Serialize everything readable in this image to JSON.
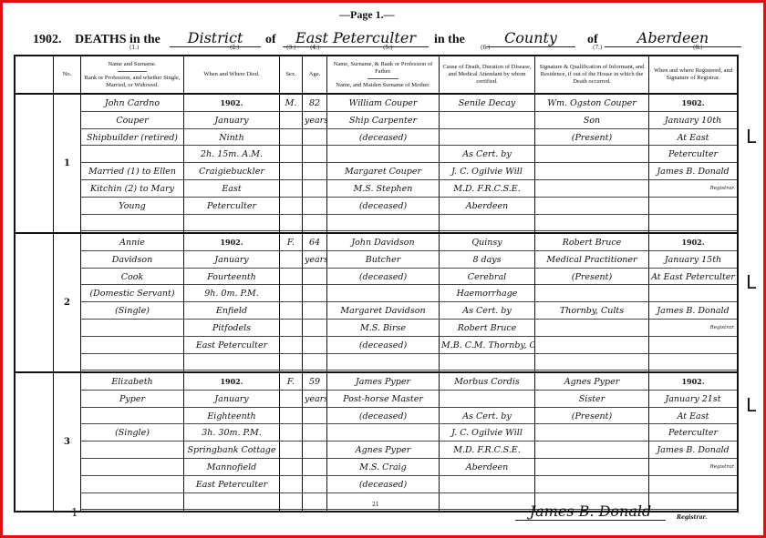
{
  "page_label": "—Page 1.—",
  "title": {
    "year": "1902.",
    "deaths_in_the": "DEATHS in the",
    "area_type": "District",
    "of1": "of",
    "district": "East Peterculter",
    "in_the": "in the",
    "county_word": "County",
    "of2": "of",
    "county": "Aberdeen"
  },
  "column_numbers": [
    "(1.)",
    "(2.)",
    "(3.)",
    "(4.)",
    "(5.)",
    "(6.)",
    "(7.)",
    "(8.)"
  ],
  "headers": {
    "no": "No.",
    "name_top": "Name and Surname.",
    "name_bottom": "Rank or Profession, and whether Single, Married, or Widowed.",
    "when": "When and Where Died.",
    "sex": "Sex.",
    "age": "Age.",
    "father_top": "Name, Surname, & Rank or Profession of Father.",
    "father_bottom": "Name, and Maiden Surname of Mother.",
    "cause": "Cause of Death, Duration of Disease, and Medical Attendant by whom certified.",
    "informant": "Signature & Qualification of Informant, and Residence, if out of the House in which the Death occurred.",
    "registered": "When and where Registered, and Signature of Registrar."
  },
  "entries": [
    {
      "no": "1",
      "name": [
        "John Cardno",
        "Couper",
        "Shipbuilder (retired)",
        "",
        "Married (1) to Ellen",
        "Kitchin (2) to Mary",
        "Young",
        ""
      ],
      "when": [
        "1902.",
        "January",
        "Ninth",
        "2h. 15m. A.M.",
        "Craigiebuckler",
        "East",
        "Peterculter",
        ""
      ],
      "sex": [
        "M.",
        "",
        "",
        "",
        "",
        "",
        "",
        ""
      ],
      "age": [
        "82",
        "years",
        "",
        "",
        "",
        "",
        "",
        ""
      ],
      "father": [
        "William Couper",
        "Ship Carpenter",
        "(deceased)",
        "",
        "Margaret Couper",
        "M.S. Stephen",
        "(deceased)",
        ""
      ],
      "cause": [
        "Senile Decay",
        "",
        "",
        "As Cert. by",
        "J. C. Ogilvie Will",
        "M.D. F.R.C.S.E.",
        "Aberdeen",
        ""
      ],
      "informant": [
        "Wm. Ogston Couper",
        "Son",
        "(Present)",
        "",
        "",
        "",
        "",
        ""
      ],
      "registered": [
        "1902.",
        "January 10th",
        "At East",
        "Peterculter",
        "James B. Donald",
        "Registrar.",
        "",
        ""
      ]
    },
    {
      "no": "2",
      "name": [
        "Annie",
        "Davidson",
        "Cook",
        "(Domestic Servant)",
        "(Single)",
        "",
        "",
        ""
      ],
      "when": [
        "1902.",
        "January",
        "Fourteenth",
        "9h. 0m. P.M.",
        "Enfield",
        "Pitfodels",
        "East Peterculter",
        ""
      ],
      "sex": [
        "F.",
        "",
        "",
        "",
        "",
        "",
        "",
        ""
      ],
      "age": [
        "64",
        "years",
        "",
        "",
        "",
        "",
        "",
        ""
      ],
      "father": [
        "John Davidson",
        "Butcher",
        "(deceased)",
        "",
        "Margaret Davidson",
        "M.S. Birse",
        "(deceased)",
        ""
      ],
      "cause": [
        "Quinsy",
        "8 days",
        "Cerebral",
        "Haemorrhage",
        "As Cert. by",
        "Robert Bruce",
        "M.B. C.M. Thornby, Cults",
        ""
      ],
      "informant": [
        "Robert Bruce",
        "Medical Practitioner",
        "(Present)",
        "",
        "Thornby, Cults",
        "",
        "",
        ""
      ],
      "registered": [
        "1902.",
        "January 15th",
        "At East Peterculter",
        "",
        "James B. Donald",
        "Registrar.",
        "",
        ""
      ]
    },
    {
      "no": "3",
      "name": [
        "Elizabeth",
        "Pyper",
        "",
        "(Single)",
        "",
        "",
        "",
        ""
      ],
      "when": [
        "1902.",
        "January",
        "Eighteenth",
        "3h. 30m. P.M.",
        "Springbank Cottage",
        "Mannofield",
        "East Peterculter",
        ""
      ],
      "sex": [
        "F.",
        "",
        "",
        "",
        "",
        "",
        "",
        ""
      ],
      "age": [
        "59",
        "years",
        "",
        "",
        "",
        "",
        "",
        ""
      ],
      "father": [
        "James Pyper",
        "Post-horse Master",
        "(deceased)",
        "",
        "Agnes Pyper",
        "M.S. Craig",
        "(deceased)",
        ""
      ],
      "cause": [
        "Morbus Cordis",
        "",
        "As Cert. by",
        "J. C. Ogilvie Will",
        "M.D. F.R.C.S.E.",
        "Aberdeen",
        "",
        ""
      ],
      "informant": [
        "Agnes Pyper",
        "Sister",
        "(Present)",
        "",
        "",
        "",
        "",
        ""
      ],
      "registered": [
        "1902.",
        "January 21st",
        "At East",
        "Peterculter",
        "James B. Donald",
        "Registrar.",
        "",
        ""
      ]
    }
  ],
  "margin_marks": [
    "L",
    "L",
    "L"
  ],
  "footer": {
    "page_number": "1",
    "mid_mark": "21",
    "registrar_signature": "James B. Donald",
    "registrar_label": "Registrar."
  }
}
